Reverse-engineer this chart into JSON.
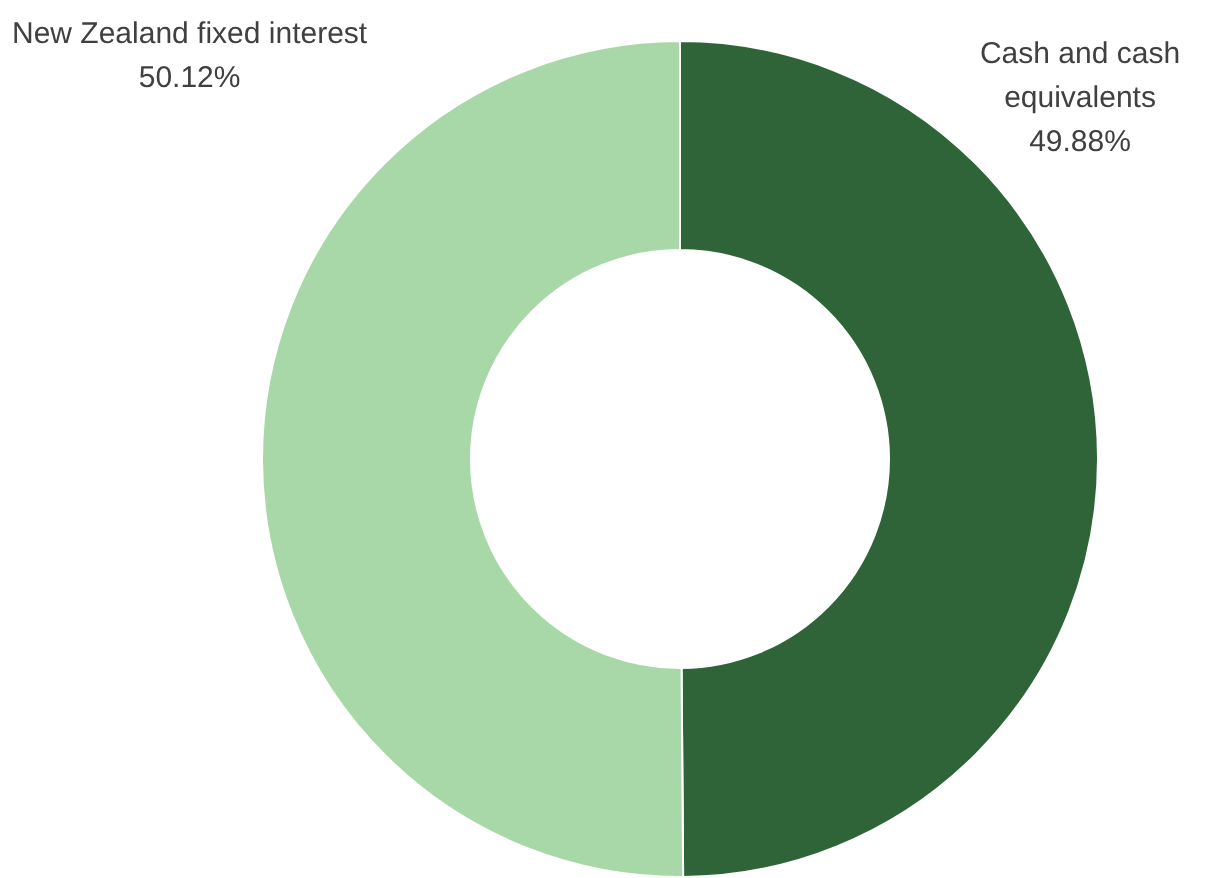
{
  "chart_data": {
    "type": "donut",
    "categories": [
      "Cash and cash equivalents",
      "New Zealand fixed interest"
    ],
    "values": [
      49.88,
      50.12
    ],
    "colors": [
      "#2e6437",
      "#a9d8a8"
    ],
    "value_labels": [
      "49.88%",
      "50.12%"
    ],
    "legend": false
  }
}
